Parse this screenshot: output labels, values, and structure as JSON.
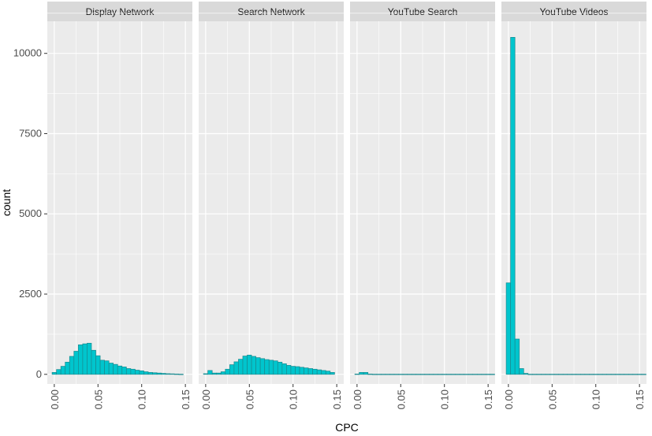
{
  "chart_data": {
    "type": "bar",
    "subtype": "faceted-histogram",
    "xlabel": "CPC",
    "ylabel": "count",
    "xlim": [
      -0.008,
      0.158
    ],
    "ylim": [
      -300,
      11000
    ],
    "x_ticks": [
      0.0,
      0.05,
      0.1,
      0.15
    ],
    "x_tick_labels": [
      "0.00",
      "0.05",
      "0.10",
      "0.15"
    ],
    "y_ticks": [
      0,
      2500,
      5000,
      7500,
      10000
    ],
    "y_tick_labels": [
      "0",
      "2500",
      "5000",
      "7500",
      "10000"
    ],
    "bin_start": 0.0,
    "bin_width": 0.005,
    "bar_fill": "#00C5CD",
    "bar_stroke": "#1a8a8f",
    "panel_bg": "#EBEBEB",
    "strip_bg": "#D9D9D9",
    "grid_color": "#ffffff",
    "facets": [
      {
        "name": "Display Network",
        "values": [
          60,
          150,
          250,
          380,
          560,
          720,
          920,
          950,
          970,
          750,
          580,
          440,
          420,
          350,
          310,
          260,
          230,
          180,
          160,
          130,
          110,
          80,
          60,
          50,
          40,
          30,
          20,
          15,
          10,
          5
        ]
      },
      {
        "name": "Search Network",
        "values": [
          20,
          120,
          40,
          40,
          80,
          160,
          300,
          390,
          470,
          570,
          600,
          560,
          520,
          490,
          460,
          440,
          420,
          380,
          330,
          280,
          250,
          240,
          220,
          200,
          180,
          160,
          140,
          120,
          100,
          60
        ]
      },
      {
        "name": "YouTube Search",
        "values": [
          10,
          60,
          60,
          10,
          5,
          5,
          5,
          5,
          5,
          5,
          5,
          5,
          5,
          5,
          5,
          5,
          5,
          5,
          5,
          5,
          5,
          5,
          5,
          5,
          5,
          5,
          5,
          5,
          5,
          5,
          5,
          5
        ]
      },
      {
        "name": "YouTube Videos",
        "values": [
          2850,
          10500,
          1100,
          180,
          30,
          5,
          5,
          5,
          5,
          5,
          5,
          5,
          5,
          5,
          5,
          5,
          5,
          5,
          5,
          5,
          5,
          5,
          5,
          5,
          5,
          5,
          5,
          5,
          5,
          5,
          5,
          5
        ]
      }
    ]
  }
}
